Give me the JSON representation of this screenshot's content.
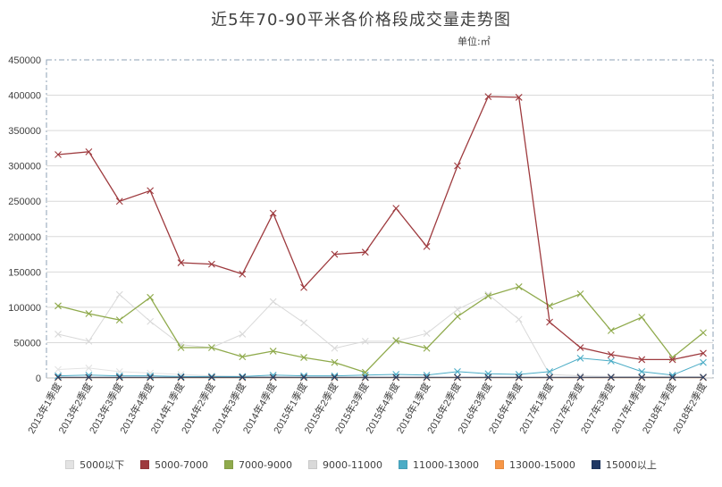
{
  "chart_data": {
    "type": "line",
    "title": "近5年70-90平米各价格段成交量走势图",
    "unit_label": "单位:㎡",
    "ylim": [
      0,
      450000
    ],
    "yticks": [
      0,
      50000,
      100000,
      150000,
      200000,
      250000,
      300000,
      350000,
      400000,
      450000
    ],
    "categories": [
      "2013年1季度",
      "2013年2季度",
      "2013年3季度",
      "2013年4季度",
      "2014年1季度",
      "2014年2季度",
      "2014年3季度",
      "2014年4季度",
      "2015年1季度",
      "2015年2季度",
      "2015年3季度",
      "2015年4季度",
      "2016年1季度",
      "2016年2季度",
      "2016年3季度",
      "2016年4季度",
      "2017年1季度",
      "2017年2季度",
      "2017年3季度",
      "2017年4季度",
      "2018年1季度",
      "2018年2季度"
    ],
    "legend_position": "bottom",
    "series": [
      {
        "name": "5000以下",
        "color": "#e3e3e3",
        "values": [
          12000,
          14000,
          9000,
          7000,
          5000,
          3000,
          2000,
          2000,
          1000,
          1000,
          1000,
          1000,
          1000,
          1000,
          1000,
          1000,
          1000,
          1000,
          500,
          500,
          500,
          500
        ]
      },
      {
        "name": "5000-7000",
        "color": "#9e3a3e",
        "values": [
          316000,
          320000,
          250000,
          265000,
          163000,
          161000,
          147000,
          233000,
          128000,
          175000,
          178000,
          240000,
          186000,
          300000,
          398000,
          397000,
          79000,
          43000,
          33000,
          26000,
          26000,
          35000
        ]
      },
      {
        "name": "7000-9000",
        "color": "#8faa4c",
        "values": [
          102000,
          91000,
          82000,
          114000,
          43000,
          43000,
          30000,
          38000,
          29000,
          22000,
          8000,
          53000,
          42000,
          87000,
          116000,
          129000,
          102000,
          119000,
          67000,
          86000,
          29000,
          64000
        ]
      },
      {
        "name": "9000-11000",
        "color": "#d9d9d9",
        "values": [
          62000,
          52000,
          118000,
          80000,
          47000,
          43000,
          62000,
          108000,
          78000,
          42000,
          52000,
          52000,
          63000,
          97000,
          118000,
          83000,
          5000,
          3000,
          2000,
          2000,
          2000,
          2000
        ]
      },
      {
        "name": "11000-13000",
        "color": "#4bacc6",
        "values": [
          3000,
          4000,
          3000,
          3000,
          2000,
          2000,
          2000,
          4000,
          3000,
          3000,
          4000,
          5000,
          4000,
          9000,
          6000,
          5000,
          9000,
          28000,
          24000,
          9000,
          4000,
          22000
        ]
      },
      {
        "name": "13000-15000",
        "color": "#f79646",
        "values": [
          500,
          500,
          500,
          500,
          500,
          500,
          500,
          500,
          500,
          500,
          500,
          500,
          500,
          500,
          500,
          500,
          500,
          500,
          500,
          500,
          500,
          500
        ]
      },
      {
        "name": "15000以上",
        "color": "#1f3864",
        "values": [
          1000,
          1000,
          1000,
          1000,
          1000,
          1000,
          1000,
          1000,
          1000,
          1000,
          1000,
          1000,
          1000,
          1000,
          1000,
          1000,
          1000,
          1000,
          1000,
          1000,
          1000,
          1000
        ]
      }
    ]
  }
}
